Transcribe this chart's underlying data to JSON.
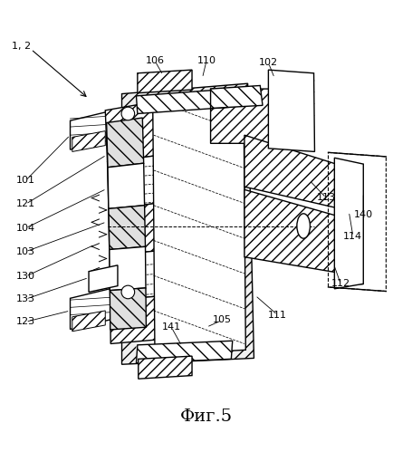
{
  "title": "Фиг.5",
  "bg_color": "#ffffff",
  "line_color": "#000000",
  "labels": {
    "1_2": "1, 2",
    "101": "101",
    "121": "121",
    "104": "104",
    "103": "103",
    "130": "130",
    "133": "133",
    "123": "123",
    "106": "106",
    "110": "110",
    "102": "102",
    "113": "113",
    "140": "140",
    "114": "114",
    "112": "112",
    "111": "111",
    "105": "105",
    "141": "141"
  }
}
